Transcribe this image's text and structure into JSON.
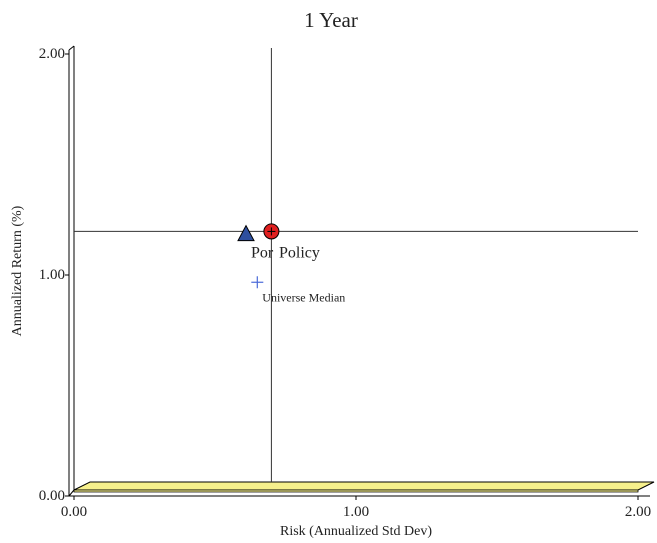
{
  "chart_data": {
    "type": "scatter",
    "title": "1 Year",
    "xlabel": "Risk (Annualized Std Dev)",
    "ylabel": "Annualized Return (%)",
    "xlim": [
      0,
      2
    ],
    "ylim": [
      0,
      2
    ],
    "x_ticks": [
      {
        "value": 0,
        "label": "0.00"
      },
      {
        "value": 1,
        "label": "1.00"
      },
      {
        "value": 2,
        "label": "2.00"
      }
    ],
    "y_ticks": [
      {
        "value": 0,
        "label": "0.00"
      },
      {
        "value": 1,
        "label": "1.00"
      },
      {
        "value": 2,
        "label": "2.00"
      }
    ],
    "grid": false,
    "reference_lines": {
      "x": 0.7,
      "y": 1.17
    },
    "points": [
      {
        "name": "Por",
        "x": 0.7,
        "y": 1.17,
        "marker": "circle",
        "color": "#e02020",
        "label": "Por"
      },
      {
        "name": "Policy",
        "x": 0.61,
        "y": 1.16,
        "marker": "triangle",
        "color": "#2e4f9e",
        "label": "Policy"
      },
      {
        "name": "Universe Median",
        "x": 0.65,
        "y": 0.94,
        "marker": "plus",
        "color": "#4a6ad8",
        "label": "Universe Median"
      }
    ],
    "colors": {
      "floor": "#f6f08c",
      "axis": "#000000"
    }
  }
}
